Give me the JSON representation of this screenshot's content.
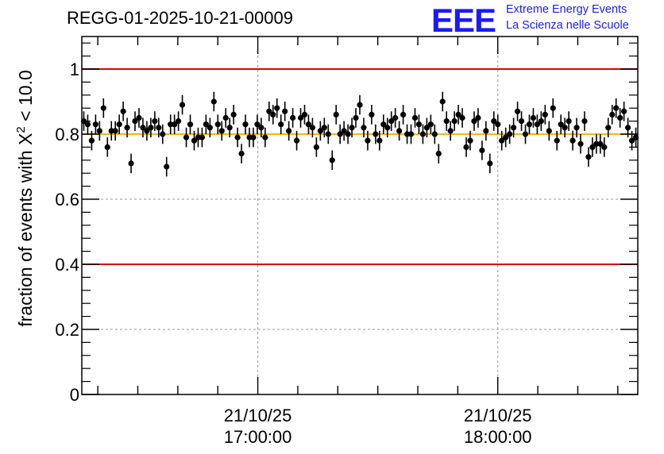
{
  "chart_data": {
    "type": "scatter",
    "title": "REGG-01-2025-10-21-00009",
    "ylabel_prefix": "fraction of events with ",
    "ylabel_symbol": "X",
    "ylabel_exponent": "2",
    "ylabel_suffix": " < 10.0",
    "xlabel": "",
    "ylim": [
      0,
      1.1
    ],
    "y_ticks": [
      0,
      0.2,
      0.4,
      0.6,
      0.8,
      1
    ],
    "y_tick_labels": [
      "0",
      "0.2",
      "0.4",
      "0.6",
      "0.8",
      "1"
    ],
    "x_axis": "time",
    "x_range_minutes": [
      0,
      139
    ],
    "x_tick_labels": [
      {
        "minute": 44,
        "date": "21/10/25",
        "time": "17:00:00"
      },
      {
        "minute": 104,
        "date": "21/10/25",
        "time": "18:00:00"
      }
    ],
    "grid": true,
    "reference_lines": [
      {
        "y": 1.0,
        "color": "#e00000"
      },
      {
        "y": 0.4,
        "color": "#e00000"
      },
      {
        "y": 0.8,
        "color": "#ffb400"
      }
    ],
    "marker_color": "#000000",
    "y_error": 0.03,
    "values": [
      0.84,
      0.83,
      0.78,
      0.83,
      0.81,
      0.88,
      0.76,
      0.81,
      0.81,
      0.83,
      0.87,
      0.82,
      0.71,
      0.84,
      0.85,
      0.82,
      0.81,
      0.82,
      0.84,
      0.82,
      0.8,
      0.7,
      0.83,
      0.83,
      0.84,
      0.89,
      0.79,
      0.83,
      0.78,
      0.79,
      0.79,
      0.83,
      0.82,
      0.9,
      0.83,
      0.81,
      0.85,
      0.82,
      0.86,
      0.79,
      0.74,
      0.83,
      0.79,
      0.79,
      0.83,
      0.82,
      0.79,
      0.87,
      0.86,
      0.88,
      0.83,
      0.87,
      0.81,
      0.85,
      0.78,
      0.85,
      0.86,
      0.83,
      0.82,
      0.76,
      0.81,
      0.82,
      0.8,
      0.72,
      0.86,
      0.8,
      0.81,
      0.8,
      0.82,
      0.85,
      0.89,
      0.82,
      0.78,
      0.86,
      0.8,
      0.78,
      0.83,
      0.82,
      0.84,
      0.85,
      0.81,
      0.86,
      0.8,
      0.8,
      0.85,
      0.83,
      0.8,
      0.82,
      0.83,
      0.8,
      0.74,
      0.9,
      0.84,
      0.81,
      0.84,
      0.86,
      0.85,
      0.76,
      0.78,
      0.84,
      0.85,
      0.75,
      0.81,
      0.71,
      0.84,
      0.83,
      0.78,
      0.79,
      0.8,
      0.82,
      0.87,
      0.84,
      0.8,
      0.83,
      0.85,
      0.83,
      0.84,
      0.86,
      0.81,
      0.88,
      0.78,
      0.83,
      0.82,
      0.84,
      0.78,
      0.82,
      0.77,
      0.84,
      0.73,
      0.76,
      0.77,
      0.77,
      0.76,
      0.82,
      0.86,
      0.88,
      0.85,
      0.87,
      0.82,
      0.78,
      0.79
    ]
  },
  "logo": {
    "mark": "EEE",
    "line1": "Extreme Energy Events",
    "line2": "La Scienza nelle Scuole"
  }
}
